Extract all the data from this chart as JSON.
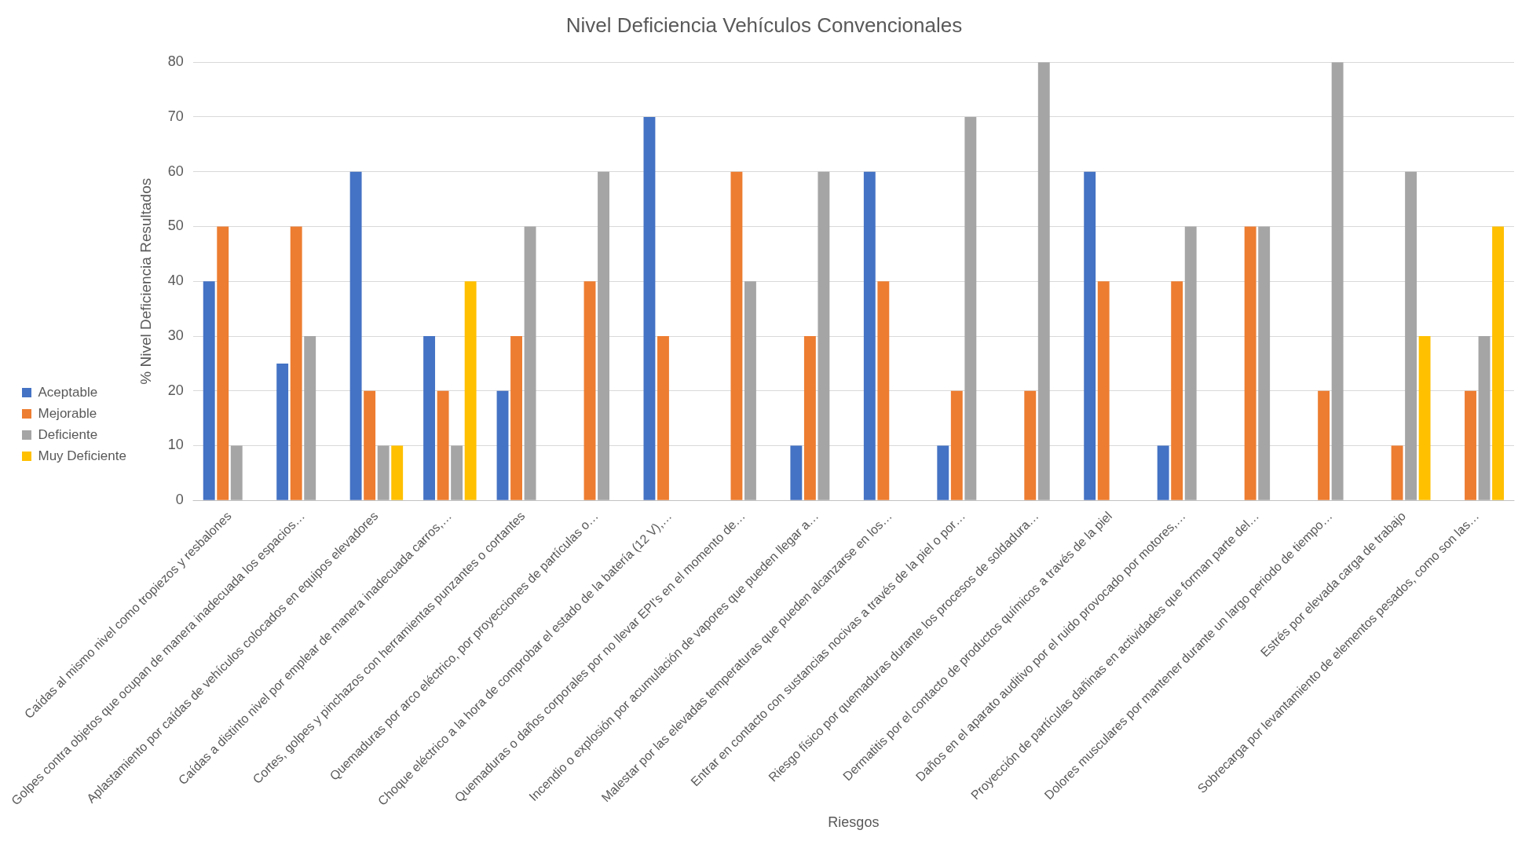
{
  "chart_data": {
    "type": "bar",
    "title": "Nivel Deficiencia Vehículos Convencionales",
    "xlabel": "Riesgos",
    "ylabel": "% Nivel Deficiencia Resultados",
    "categories": [
      "Caídas al mismo nivel como tropiezos y resbalones",
      "Golpes contra objetos que ocupan de manera inadecuada los espacios…",
      "Aplastamiento por caídas de vehículos colocados en equipos elevadores",
      "Caídas a distinto nivel por emplear de manera inadecuada carros,…",
      "Cortes, golpes y pinchazos con herramientas punzantes o cortantes",
      "Quemaduras por arco eléctrico, por proyecciones de partículas o…",
      "Choque eléctrico a la hora de comprobar el estado de la batería (12 V),…",
      "Quemaduras o daños corporales por no llevar EPI's en el momento de…",
      "Incendio o explosión por acumulación de vapores que pueden llegar a…",
      "Malestar por las elevadas temperaturas que pueden alcanzarse en los…",
      "Entrar en contacto con sustancias nocivas a través de la piel o por…",
      "Riesgo físico por quemaduras durante los procesos de soldadura…",
      "Dermatitis por el contacto de productos químicos a través de la piel",
      "Daños en el aparato auditivo por el ruido provocado por motores,…",
      "Proyección de partículas dañinas en actividades que forman parte del…",
      "Dolores musculares por mantener durante un largo periodo de tiempo…",
      "Estrés por elevada carga de trabajo",
      "Sobrecarga por levantamiento de elementos pesados, como son las…"
    ],
    "series": [
      {
        "name": "Aceptable",
        "color": "#4472c4",
        "values": [
          40,
          25,
          60,
          30,
          20,
          0,
          70,
          0,
          10,
          60,
          10,
          0,
          60,
          10,
          0,
          0,
          0,
          0
        ]
      },
      {
        "name": "Mejorable",
        "color": "#ed7d31",
        "values": [
          50,
          50,
          20,
          20,
          30,
          40,
          30,
          60,
          30,
          40,
          20,
          20,
          40,
          40,
          50,
          20,
          10,
          20
        ]
      },
      {
        "name": "Deficiente",
        "color": "#a5a5a5",
        "values": [
          10,
          30,
          10,
          10,
          50,
          60,
          0,
          40,
          60,
          0,
          70,
          80,
          0,
          50,
          50,
          80,
          60,
          30
        ]
      },
      {
        "name": "Muy Deficiente",
        "color": "#ffc000",
        "values": [
          0,
          0,
          10,
          40,
          0,
          0,
          0,
          0,
          0,
          0,
          0,
          0,
          0,
          0,
          0,
          0,
          30,
          50
        ]
      }
    ],
    "ylim": [
      0,
      80
    ],
    "yticks": [
      0,
      10,
      20,
      30,
      40,
      50,
      60,
      70,
      80
    ],
    "grid": "y",
    "legend": "left"
  }
}
